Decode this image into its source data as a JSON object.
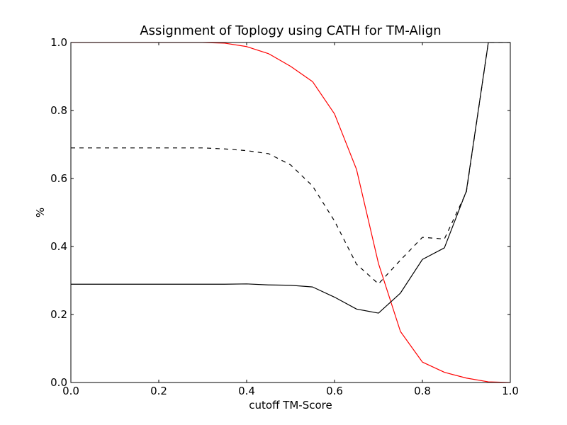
{
  "chart_data": {
    "type": "line",
    "title": "Assignment of Toplogy using CATH for TM-Align",
    "xlabel": "cutoff TM-Score",
    "ylabel": "%",
    "xlim": [
      0.0,
      1.0
    ],
    "ylim": [
      0.0,
      1.0
    ],
    "x_ticks": [
      "0.0",
      "0.2",
      "0.4",
      "0.6",
      "0.8",
      "1.0"
    ],
    "y_ticks": [
      "0.0",
      "0.2",
      "0.4",
      "0.6",
      "0.8",
      "1.0"
    ],
    "grid": false,
    "legend": "none",
    "x": [
      0.0,
      0.05,
      0.1,
      0.15,
      0.2,
      0.25,
      0.3,
      0.35,
      0.4,
      0.45,
      0.5,
      0.55,
      0.6,
      0.65,
      0.7,
      0.75,
      0.8,
      0.85,
      0.9,
      0.95,
      1.0
    ],
    "series": [
      {
        "color": "#ff0000",
        "style": "solid",
        "values": [
          1.0,
          1.0,
          1.0,
          1.0,
          1.0,
          1.0,
          1.0,
          0.998,
          0.988,
          0.967,
          0.93,
          0.885,
          0.79,
          0.627,
          0.35,
          0.15,
          0.06,
          0.03,
          0.013,
          0.002,
          0.0
        ]
      },
      {
        "color": "#000000",
        "style": "dashed",
        "values": [
          0.69,
          0.69,
          0.69,
          0.69,
          0.69,
          0.69,
          0.69,
          0.687,
          0.682,
          0.673,
          0.64,
          0.578,
          0.475,
          0.348,
          0.29,
          0.36,
          0.427,
          0.422,
          0.56,
          1.0,
          1.0
        ]
      },
      {
        "color": "#000000",
        "style": "solid",
        "values": [
          0.289,
          0.289,
          0.289,
          0.289,
          0.289,
          0.289,
          0.289,
          0.289,
          0.29,
          0.287,
          0.286,
          0.281,
          0.251,
          0.216,
          0.204,
          0.263,
          0.362,
          0.396,
          0.563,
          1.0,
          1.0
        ]
      }
    ]
  }
}
